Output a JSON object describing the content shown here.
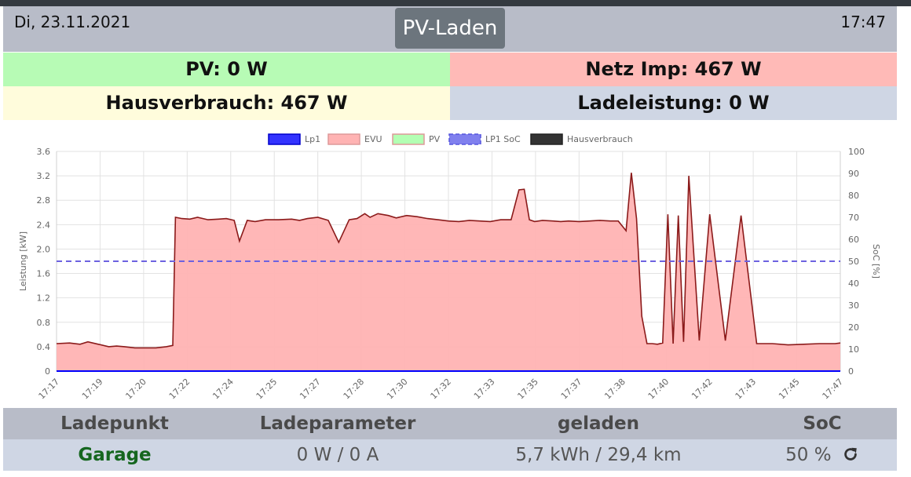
{
  "header": {
    "date": "Di, 23.11.2021",
    "mode_button": "PV-Laden",
    "time": "17:47"
  },
  "stats": {
    "pv": "PV: 0 W",
    "netz": "Netz Imp: 467 W",
    "hausverbrauch": "Hausverbrauch: 467 W",
    "ladeleistung": "Ladeleistung: 0 W"
  },
  "colors": {
    "pv_bg": "#b7fbb5",
    "netz_bg": "#ffbab7",
    "haus_bg": "#fffcdc",
    "lade_bg": "#cfd6e4",
    "header_bg": "#b8bcc8",
    "evu_line": "#8b1a1a",
    "evu_fill": "#ffb3b3",
    "lp1_line": "#0000ff",
    "soc_line": "#6d62e0"
  },
  "chart_data": {
    "type": "area",
    "legend": [
      {
        "name": "Lp1",
        "color": "#3333ff"
      },
      {
        "name": "EVU",
        "color": "#ffb3b3"
      },
      {
        "name": "PV",
        "color": "#b3ffb3"
      },
      {
        "name": "LP1 SoC",
        "color": "#8080ee"
      },
      {
        "name": "Hausverbrauch",
        "color": "#333333"
      }
    ],
    "legend_position": "top",
    "ylabel": "Leistung [kW]",
    "y2label": "SoC [%]",
    "ylim": [
      0,
      3.6
    ],
    "y_ticks": [
      "0",
      "0.4",
      "0.8",
      "1.2",
      "1.6",
      "2.0",
      "2.4",
      "2.8",
      "3.2",
      "3.6"
    ],
    "y2lim": [
      0,
      100
    ],
    "y2_ticks": [
      "0",
      "10",
      "20",
      "30",
      "40",
      "50",
      "60",
      "70",
      "80",
      "90",
      "100"
    ],
    "x_ticks": [
      "17:17",
      "17:19",
      "17:20",
      "17:22",
      "17:24",
      "17:25",
      "17:27",
      "17:28",
      "17:30",
      "17:32",
      "17:33",
      "17:35",
      "17:37",
      "17:38",
      "17:40",
      "17:42",
      "17:43",
      "17:45",
      "17:47"
    ],
    "grid": true,
    "x_minutes": [
      0,
      0.5,
      0.9,
      1.2,
      1.6,
      2.0,
      2.3,
      2.6,
      3.0,
      3.4,
      3.8,
      4.2,
      4.45,
      4.55,
      4.8,
      5.1,
      5.4,
      5.8,
      6.2,
      6.5,
      6.8,
      7.0,
      7.3,
      7.6,
      8.0,
      8.5,
      9.0,
      9.3,
      9.6,
      10.0,
      10.4,
      10.8,
      11.2,
      11.5,
      11.8,
      12.0,
      12.3,
      12.7,
      13.0,
      13.4,
      13.8,
      14.2,
      14.6,
      15.0,
      15.4,
      15.8,
      16.2,
      16.6,
      17.0,
      17.4,
      17.7,
      17.9,
      18.1,
      18.3,
      18.6,
      19.0,
      19.3,
      19.6,
      20.0,
      20.4,
      20.8,
      21.2,
      21.5,
      21.8,
      22.0,
      22.2,
      22.4,
      22.6,
      22.8,
      23.0,
      23.2,
      23.4,
      23.6,
      23.8,
      24.0,
      24.2,
      24.6,
      25.0,
      25.6,
      26.2,
      26.8,
      27.4,
      28.0,
      28.6,
      29.2,
      29.8,
      30.0
    ],
    "evu_kw": [
      0.45,
      0.46,
      0.44,
      0.48,
      0.44,
      0.4,
      0.41,
      0.4,
      0.38,
      0.38,
      0.38,
      0.4,
      0.42,
      2.52,
      2.5,
      2.49,
      2.52,
      2.48,
      2.49,
      2.5,
      2.47,
      2.13,
      2.47,
      2.45,
      2.48,
      2.48,
      2.49,
      2.47,
      2.5,
      2.52,
      2.47,
      2.11,
      2.48,
      2.5,
      2.58,
      2.52,
      2.58,
      2.55,
      2.51,
      2.55,
      2.53,
      2.5,
      2.48,
      2.46,
      2.45,
      2.47,
      2.46,
      2.45,
      2.48,
      2.48,
      2.97,
      2.98,
      2.48,
      2.45,
      2.47,
      2.46,
      2.45,
      2.46,
      2.45,
      2.46,
      2.47,
      2.46,
      2.46,
      2.3,
      3.25,
      2.5,
      0.9,
      0.45,
      0.45,
      0.44,
      0.46,
      2.57,
      0.45,
      2.55,
      0.48,
      3.2,
      0.5,
      2.57,
      0.5,
      2.55,
      0.45,
      0.45,
      0.43,
      0.44,
      0.45,
      0.45,
      0.46
    ],
    "lp1_kw": 0,
    "soc_percent": 50
  },
  "table": {
    "headers": [
      "Ladepunkt",
      "Ladeparameter",
      "geladen",
      "SoC"
    ],
    "row": {
      "ladepunkt": "Garage",
      "ladeparameter": "0 W / 0 A",
      "geladen": "5,7 kWh / 29,4 km",
      "soc": "50 %"
    }
  }
}
